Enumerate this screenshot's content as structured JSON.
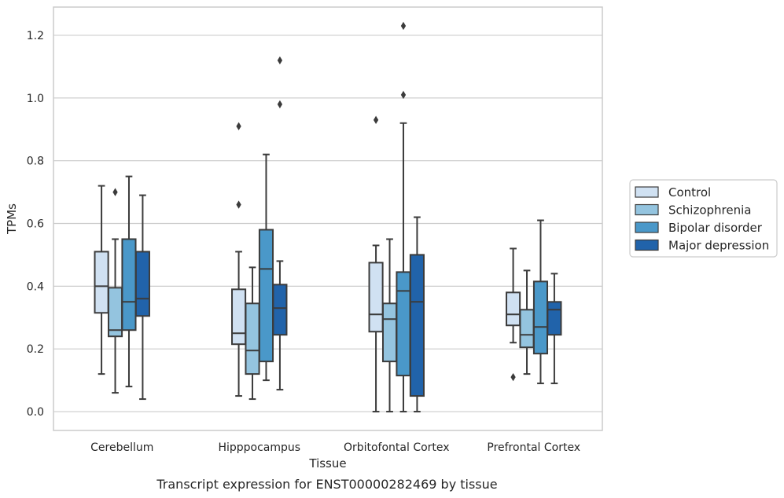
{
  "chart_data": {
    "type": "box",
    "caption": "Transcript expression for ENST00000282469 by tissue",
    "xlabel": "Tissue",
    "ylabel": "TPMs",
    "ylim": [
      -0.06,
      1.29
    ],
    "yticks": [
      0.0,
      0.2,
      0.4,
      0.6,
      0.8,
      1.0,
      1.2
    ],
    "ytick_labels": [
      "0.0",
      "0.2",
      "0.4",
      "0.6",
      "0.8",
      "1.0",
      "1.2"
    ],
    "grid": "horizontal",
    "legend_position": "right",
    "categories": [
      "Cerebellum",
      "Hipppocampus",
      "Orbitofontal Cortex",
      "Prefrontal Cortex"
    ],
    "series": [
      {
        "name": "Control",
        "color": "#d0e1f2",
        "boxes": [
          {
            "whislo": 0.12,
            "q1": 0.315,
            "med": 0.4,
            "q3": 0.51,
            "whishi": 0.72,
            "fliers": []
          },
          {
            "whislo": 0.05,
            "q1": 0.215,
            "med": 0.25,
            "q3": 0.39,
            "whishi": 0.51,
            "fliers": [
              0.66,
              0.91
            ]
          },
          {
            "whislo": 0.0,
            "q1": 0.255,
            "med": 0.31,
            "q3": 0.475,
            "whishi": 0.53,
            "fliers": [
              0.93
            ]
          },
          {
            "whislo": 0.22,
            "q1": 0.275,
            "med": 0.31,
            "q3": 0.38,
            "whishi": 0.52,
            "fliers": [
              0.11
            ]
          }
        ]
      },
      {
        "name": "Schizophrenia",
        "color": "#94c4df",
        "boxes": [
          {
            "whislo": 0.06,
            "q1": 0.24,
            "med": 0.26,
            "q3": 0.395,
            "whishi": 0.55,
            "fliers": [
              0.7
            ]
          },
          {
            "whislo": 0.04,
            "q1": 0.12,
            "med": 0.195,
            "q3": 0.345,
            "whishi": 0.46,
            "fliers": []
          },
          {
            "whislo": 0.0,
            "q1": 0.16,
            "med": 0.295,
            "q3": 0.345,
            "whishi": 0.55,
            "fliers": []
          },
          {
            "whislo": 0.12,
            "q1": 0.205,
            "med": 0.245,
            "q3": 0.325,
            "whishi": 0.45,
            "fliers": []
          }
        ]
      },
      {
        "name": "Bipolar disorder",
        "color": "#4a98c9",
        "boxes": [
          {
            "whislo": 0.08,
            "q1": 0.26,
            "med": 0.35,
            "q3": 0.55,
            "whishi": 0.75,
            "fliers": []
          },
          {
            "whislo": 0.1,
            "q1": 0.16,
            "med": 0.455,
            "q3": 0.58,
            "whishi": 0.82,
            "fliers": []
          },
          {
            "whislo": 0.0,
            "q1": 0.115,
            "med": 0.385,
            "q3": 0.445,
            "whishi": 0.92,
            "fliers": [
              1.01,
              1.23
            ]
          },
          {
            "whislo": 0.09,
            "q1": 0.185,
            "med": 0.27,
            "q3": 0.415,
            "whishi": 0.61,
            "fliers": []
          }
        ]
      },
      {
        "name": "Major depression",
        "color": "#2163aa",
        "boxes": [
          {
            "whislo": 0.04,
            "q1": 0.305,
            "med": 0.36,
            "q3": 0.51,
            "whishi": 0.69,
            "fliers": []
          },
          {
            "whislo": 0.07,
            "q1": 0.245,
            "med": 0.33,
            "q3": 0.405,
            "whishi": 0.48,
            "fliers": [
              0.98,
              1.12
            ]
          },
          {
            "whislo": 0.0,
            "q1": 0.05,
            "med": 0.35,
            "q3": 0.5,
            "whishi": 0.62,
            "fliers": []
          },
          {
            "whislo": 0.09,
            "q1": 0.245,
            "med": 0.325,
            "q3": 0.35,
            "whishi": 0.44,
            "fliers": []
          }
        ]
      }
    ]
  }
}
